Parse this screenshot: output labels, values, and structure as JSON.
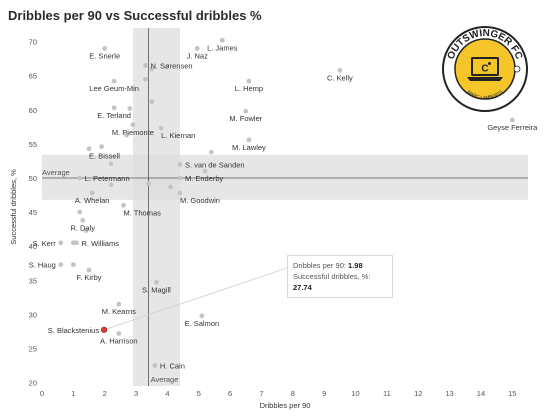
{
  "title": "Dribbles per 90 vs Successful dribbles %",
  "colors": {
    "point": "#c4c4c4",
    "highlight": "#d63a32",
    "band": "#dedede",
    "ref_line": "#555555",
    "logo_yellow": "#f6c52a",
    "logo_dark": "#222222"
  },
  "logo": {
    "name": "OUTSWINGER FC",
    "subtitle": "MARC LAMBERTS"
  },
  "tooltip": {
    "x_label": "Dribbles per 90:",
    "x_value": "1.98",
    "y_label": "Successful dribbles, %:",
    "y_value": "27.74"
  },
  "chart_data": {
    "type": "scatter",
    "title": "Dribbles per 90 vs Successful dribbles %",
    "xlabel": "Dribbles per 90",
    "ylabel": "Successful dribbles, %",
    "xlim": [
      0,
      15.5
    ],
    "ylim": [
      19.5,
      72
    ],
    "xticks": [
      0,
      1,
      2,
      3,
      4,
      5,
      6,
      7,
      8,
      9,
      10,
      11,
      12,
      13,
      14,
      15
    ],
    "yticks": [
      20,
      25,
      30,
      35,
      40,
      45,
      50,
      55,
      60,
      65,
      70
    ],
    "grid": false,
    "reference": {
      "x_average": 3.4,
      "y_average": 50,
      "x_band": [
        2.9,
        4.4
      ],
      "y_band": [
        46.8,
        53.4
      ],
      "x_ref_label": "Average",
      "y_ref_label": "Average"
    },
    "highlight": {
      "x": 1.98,
      "y": 27.74
    },
    "points": [
      {
        "x": 2.0,
        "y": 69.0,
        "label": "E. Snerle",
        "anchor": "middle",
        "side": "below"
      },
      {
        "x": 3.3,
        "y": 66.5,
        "label": "N. Sørensen",
        "anchor": "start",
        "side": "right"
      },
      {
        "x": 4.95,
        "y": 69.0,
        "label": "J. Naz",
        "anchor": "middle",
        "side": "below"
      },
      {
        "x": 5.75,
        "y": 70.2,
        "label": "L. James",
        "anchor": "middle",
        "side": "below"
      },
      {
        "x": 9.5,
        "y": 65.8,
        "label": "C. Kelly",
        "anchor": "middle",
        "side": "below"
      },
      {
        "x": 15.0,
        "y": 58.5,
        "label": "Geyse Ferreira",
        "anchor": "middle",
        "side": "below"
      },
      {
        "x": 2.3,
        "y": 64.2,
        "label": "Lee Geum-Min",
        "anchor": "middle",
        "side": "below"
      },
      {
        "x": 6.6,
        "y": 64.2,
        "label": "L. Hemp",
        "anchor": "middle",
        "side": "below"
      },
      {
        "x": 2.3,
        "y": 60.3,
        "label": "E. Terland",
        "anchor": "middle",
        "side": "below"
      },
      {
        "x": 6.5,
        "y": 59.8,
        "label": "M. Fowler",
        "anchor": "middle",
        "side": "below"
      },
      {
        "x": 2.9,
        "y": 57.8,
        "label": "M. Piemonte",
        "anchor": "middle",
        "side": "below"
      },
      {
        "x": 3.8,
        "y": 57.3,
        "label": "L. Kiernan",
        "anchor": "start",
        "side": "below"
      },
      {
        "x": 6.6,
        "y": 55.6,
        "label": "M. Lawley",
        "anchor": "middle",
        "side": "below"
      },
      {
        "x": 1.5,
        "y": 54.3,
        "label": "E. Bissell",
        "anchor": "start",
        "side": "below"
      },
      {
        "x": 4.4,
        "y": 52.0,
        "label": "S. van de Sanden",
        "anchor": "start",
        "side": "right"
      },
      {
        "x": 1.2,
        "y": 50.0,
        "label": "L. Petermann",
        "anchor": "start",
        "side": "right"
      },
      {
        "x": 4.4,
        "y": 50.0,
        "label": "M. Enderby",
        "anchor": "start",
        "side": "right"
      },
      {
        "x": 1.6,
        "y": 47.8,
        "label": "A. Whelan",
        "anchor": "middle",
        "side": "below"
      },
      {
        "x": 4.4,
        "y": 47.8,
        "label": "M. Goodwin",
        "anchor": "start",
        "side": "below"
      },
      {
        "x": 2.6,
        "y": 46.0,
        "label": "M. Thomas",
        "anchor": "start",
        "side": "below"
      },
      {
        "x": 1.3,
        "y": 43.8,
        "label": "R. Daly",
        "anchor": "middle",
        "side": "below"
      },
      {
        "x": 0.6,
        "y": 40.5,
        "label": "S. Kerr",
        "anchor": "end",
        "side": "left"
      },
      {
        "x": 1.1,
        "y": 40.5,
        "label": "R. Williams",
        "anchor": "start",
        "side": "right"
      },
      {
        "x": 0.6,
        "y": 37.3,
        "label": "S. Haug",
        "anchor": "end",
        "side": "left"
      },
      {
        "x": 1.5,
        "y": 36.5,
        "label": "F. Kirby",
        "anchor": "middle",
        "side": "below"
      },
      {
        "x": 3.65,
        "y": 34.7,
        "label": "S. Magill",
        "anchor": "middle",
        "side": "below"
      },
      {
        "x": 2.45,
        "y": 31.5,
        "label": "M. Kearns",
        "anchor": "middle",
        "side": "below"
      },
      {
        "x": 5.1,
        "y": 29.8,
        "label": "E. Salmon",
        "anchor": "middle",
        "side": "below"
      },
      {
        "x": 1.98,
        "y": 27.74,
        "label": "S. Blackstenius",
        "anchor": "end",
        "side": "left"
      },
      {
        "x": 2.45,
        "y": 27.2,
        "label": "A. Harrison",
        "anchor": "middle",
        "side": "below"
      },
      {
        "x": 3.6,
        "y": 22.5,
        "label": "H. Cain",
        "anchor": "start",
        "side": "right"
      },
      {
        "x": 2.8,
        "y": 60.2
      },
      {
        "x": 3.5,
        "y": 61.2
      },
      {
        "x": 2.7,
        "y": 56.3
      },
      {
        "x": 1.9,
        "y": 54.6
      },
      {
        "x": 2.2,
        "y": 52.1
      },
      {
        "x": 5.4,
        "y": 53.8
      },
      {
        "x": 5.2,
        "y": 51.0
      },
      {
        "x": 2.2,
        "y": 49.0
      },
      {
        "x": 4.1,
        "y": 48.7
      },
      {
        "x": 1.2,
        "y": 45.0
      },
      {
        "x": 1.4,
        "y": 42.3
      },
      {
        "x": 1.0,
        "y": 40.5
      },
      {
        "x": 1.0,
        "y": 37.3
      },
      {
        "x": 3.5,
        "y": 66.0
      },
      {
        "x": 3.3,
        "y": 64.5
      },
      {
        "x": 3.4,
        "y": 49.2
      }
    ]
  }
}
